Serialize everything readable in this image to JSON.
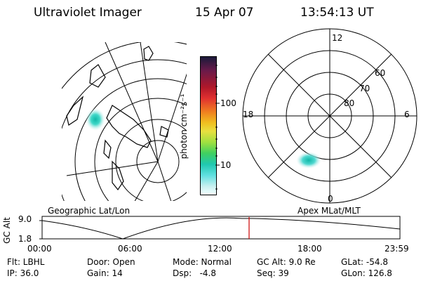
{
  "header": {
    "instrument": "Ultraviolet Imager",
    "date": "15 Apr 07",
    "time": "13:54:13 UT"
  },
  "panels": {
    "left_label": "Geographic Lat/Lon",
    "right_label": "Apex MLat/MLT"
  },
  "polar": {
    "mlt_labels": [
      "12",
      "18",
      "6",
      "0"
    ],
    "lat_labels": [
      "60",
      "70",
      "80"
    ]
  },
  "colorbar": {
    "label": "photon cm⁻²s⁻¹",
    "ticks": [
      "100",
      "10"
    ]
  },
  "timeline": {
    "ylabel": "GC Alt",
    "yticks": [
      "9.0",
      "1.8"
    ],
    "xticks": [
      "00:00",
      "06:00",
      "12:00",
      "18:00",
      "23:59"
    ],
    "current_marker_time": "13:54"
  },
  "info": {
    "row1": [
      "Flt: LBHL",
      "Door: Open",
      "Mode: Normal",
      "GC Alt: 9.0 Re",
      "GLat: -54.8"
    ],
    "row2": [
      "IP: 36.0",
      "Gain: 14",
      "Dsp:   -4.8",
      "Seq: 39",
      "GLon: 126.8"
    ]
  },
  "colors": {
    "marker": "#cc0000",
    "emission": "#22c8c0"
  }
}
